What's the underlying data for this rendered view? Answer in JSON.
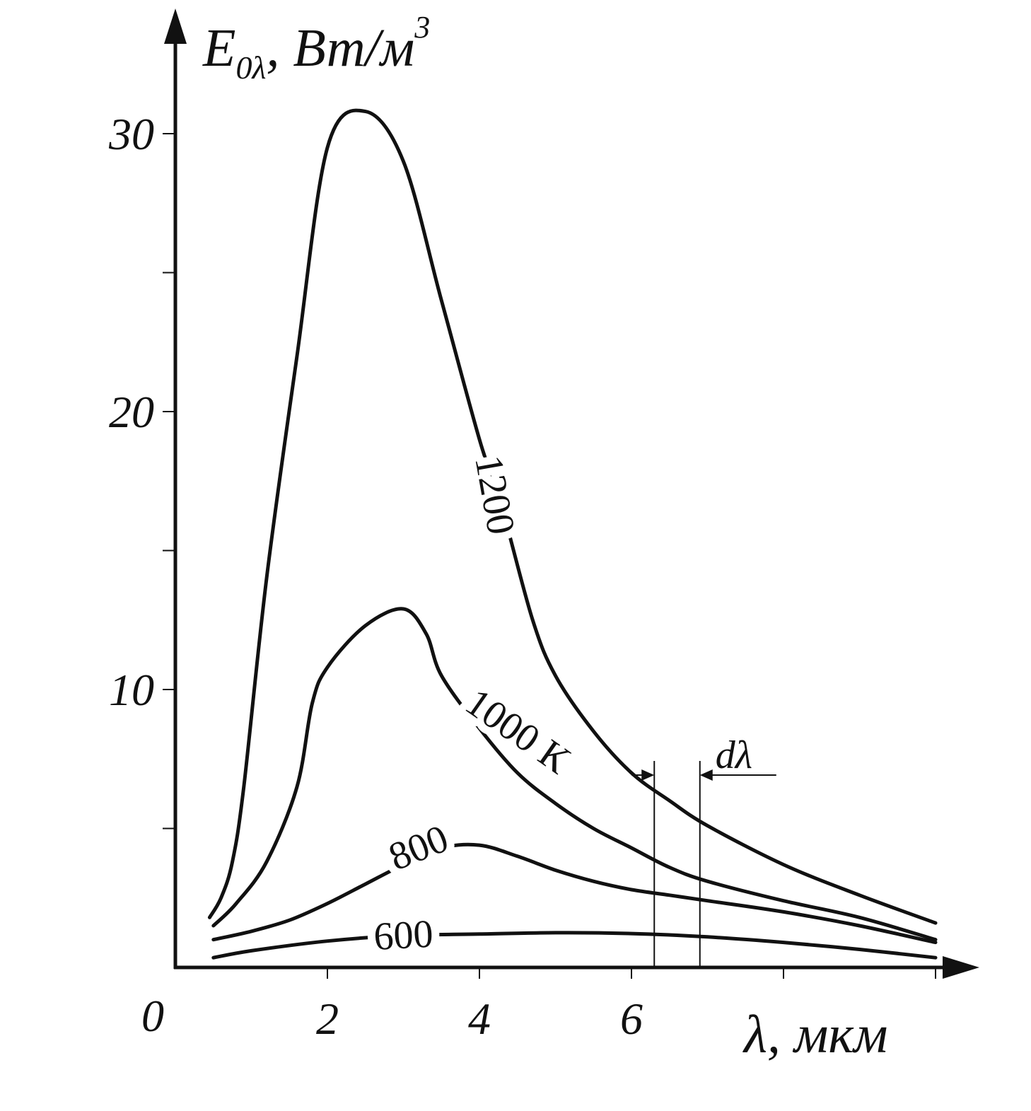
{
  "chart_data": {
    "type": "line",
    "xlabel": "λ, мкм",
    "ylabel": {
      "main": "E",
      "sub": "0λ",
      "unit": "Вт/м",
      "sup": "3"
    },
    "origin_label": "0",
    "xlim": [
      0,
      10
    ],
    "ylim": [
      0,
      33
    ],
    "x_ticks": [
      2,
      4,
      6,
      8,
      10
    ],
    "x_tick_labels": [
      "2",
      "4",
      "6"
    ],
    "y_ticks": [
      5,
      10,
      15,
      20,
      25,
      30
    ],
    "y_tick_labels": [
      "10",
      "20",
      "30"
    ],
    "grid": false,
    "series": [
      {
        "name": "1200",
        "x": [
          0.45,
          0.6,
          0.75,
          0.9,
          1.2,
          1.6,
          2.0,
          2.5,
          3.0,
          3.5,
          4.0,
          4.3,
          4.7,
          5.0,
          5.5,
          6.0,
          6.5,
          7.0,
          8.0,
          9.0,
          10.0
        ],
        "y": [
          1.8,
          2.5,
          3.8,
          6.5,
          14.0,
          22.0,
          29.5,
          30.8,
          29.0,
          24.0,
          19.0,
          16.5,
          12.5,
          10.5,
          8.5,
          7.0,
          6.0,
          5.1,
          3.7,
          2.6,
          1.6
        ],
        "label_at": [
          4.2,
          17.0
        ]
      },
      {
        "name": "1000 К",
        "x": [
          0.5,
          0.8,
          1.2,
          1.6,
          1.8,
          2.0,
          2.5,
          3.0,
          3.3,
          3.5,
          4.0,
          4.5,
          5.0,
          5.5,
          6.0,
          6.5,
          7.0,
          8.0,
          9.0,
          10.0
        ],
        "y": [
          1.5,
          2.3,
          3.8,
          6.5,
          9.5,
          10.8,
          12.3,
          12.9,
          12.0,
          10.5,
          8.6,
          7.0,
          5.9,
          5.0,
          4.3,
          3.6,
          3.1,
          2.4,
          1.8,
          1.0
        ],
        "label_at": [
          4.5,
          8.5
        ]
      },
      {
        "name": "800",
        "x": [
          0.5,
          1.0,
          1.5,
          2.0,
          2.5,
          3.0,
          3.5,
          4.0,
          4.5,
          5.0,
          5.5,
          6.0,
          6.5,
          7.0,
          8.0,
          9.0,
          10.0
        ],
        "y": [
          1.0,
          1.3,
          1.7,
          2.3,
          3.0,
          3.7,
          4.3,
          4.4,
          4.0,
          3.5,
          3.1,
          2.8,
          2.6,
          2.4,
          2.0,
          1.5,
          0.9
        ],
        "label_at": [
          3.2,
          4.3
        ]
      },
      {
        "name": "600",
        "x": [
          0.5,
          1.0,
          2.0,
          3.0,
          4.0,
          5.0,
          6.0,
          7.0,
          8.0,
          9.0,
          10.0
        ],
        "y": [
          0.35,
          0.6,
          0.95,
          1.15,
          1.2,
          1.25,
          1.22,
          1.1,
          0.9,
          0.65,
          0.35
        ],
        "label_at": [
          3.0,
          1.15
        ]
      }
    ],
    "annotation": {
      "text": "dλ",
      "x_range": [
        6.3,
        6.9
      ]
    }
  }
}
